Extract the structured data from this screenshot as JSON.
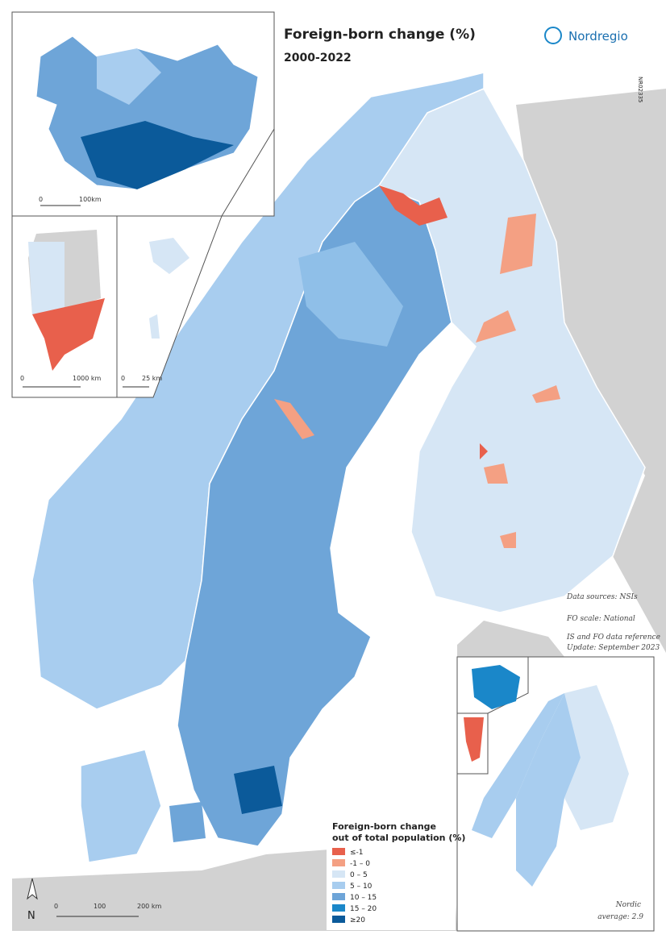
{
  "title": "Foreign-born change (%)",
  "subtitle": "2000-2022",
  "logo": "Nordregio",
  "map_code": "NR02335",
  "notes": [
    "Data sources: NSIs",
    "FO scale: National",
    "IS and FO data reference",
    "Update: September 2023"
  ],
  "legend": {
    "title": [
      "Foreign-born change",
      "out of total population (%)"
    ],
    "items": [
      {
        "label": "≤-1",
        "color": "#e8604c"
      },
      {
        "label": "-1 – 0",
        "color": "#f4a083"
      },
      {
        "label": "0 – 5",
        "color": "#d6e6f5"
      },
      {
        "label": "5 – 10",
        "color": "#a8cdef"
      },
      {
        "label": "10 – 15",
        "color": "#6ea5d8"
      },
      {
        "label": "15 – 20",
        "color": "#1a87c9"
      },
      {
        "label": "≥20",
        "color": "#0b5a9a"
      }
    ]
  },
  "scales": {
    "iceland": [
      "0",
      "100km"
    ],
    "greenland": [
      "0",
      "1000 km"
    ],
    "svalbard": [
      "0",
      "25 km"
    ],
    "main": [
      "0",
      "100",
      "200 km"
    ]
  },
  "north": "N",
  "average": [
    "Nordic",
    "average: 2.9"
  ]
}
